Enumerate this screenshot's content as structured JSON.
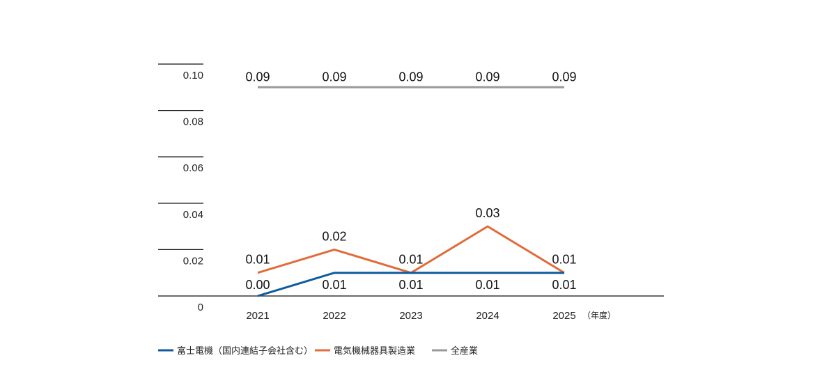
{
  "chart_data": {
    "type": "line",
    "x": [
      "2021",
      "2022",
      "2023",
      "2024",
      "2025"
    ],
    "x_unit": "（年度）",
    "ylim": [
      0,
      0.1
    ],
    "yticks": [
      "0",
      "0.02",
      "0.04",
      "0.06",
      "0.08",
      "0.10"
    ],
    "grid": false,
    "legend_position": "bottom-left",
    "series": [
      {
        "name": "富士電機（国内連結子会社含む）",
        "color": "#0f5a9e",
        "values": [
          0.0,
          0.01,
          0.01,
          0.01,
          0.01
        ],
        "labels": [
          "0.00",
          "0.01",
          "0.01",
          "0.01",
          "0.01"
        ]
      },
      {
        "name": "電気機械器具製造業",
        "color": "#e06c3a",
        "values": [
          0.01,
          0.02,
          0.01,
          0.03,
          0.01
        ],
        "labels": [
          "0.01",
          "0.02",
          "0.01",
          "0.03",
          "0.01"
        ]
      },
      {
        "name": "全産業",
        "color": "#999999",
        "values": [
          0.09,
          0.09,
          0.09,
          0.09,
          0.09
        ],
        "labels": [
          "0.09",
          "0.09",
          "0.09",
          "0.09",
          "0.09"
        ]
      }
    ]
  }
}
